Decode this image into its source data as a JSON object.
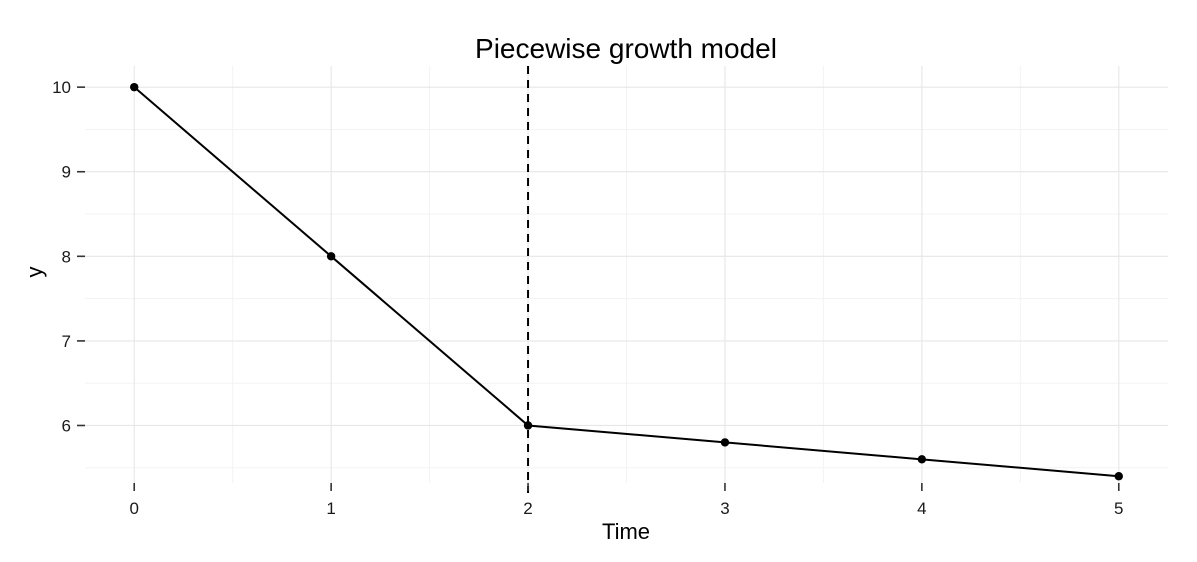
{
  "chart_data": {
    "type": "line",
    "title": "Piecewise growth model",
    "xlabel": "Time",
    "ylabel": "y",
    "x": [
      0,
      1,
      2,
      3,
      4,
      5
    ],
    "y": [
      10,
      8,
      6,
      5.8,
      5.6,
      5.4
    ],
    "xlim": [
      -0.25,
      5.25
    ],
    "ylim": [
      5.32,
      10.25
    ],
    "x_ticks": [
      0,
      1,
      2,
      3,
      4,
      5
    ],
    "y_ticks": [
      6,
      7,
      8,
      9,
      10
    ],
    "vertical_line": {
      "x": 2,
      "style": "dashed"
    },
    "grid": true,
    "legend": false,
    "colors": {
      "line": "#000000",
      "grid": "#e6e6e6"
    }
  }
}
